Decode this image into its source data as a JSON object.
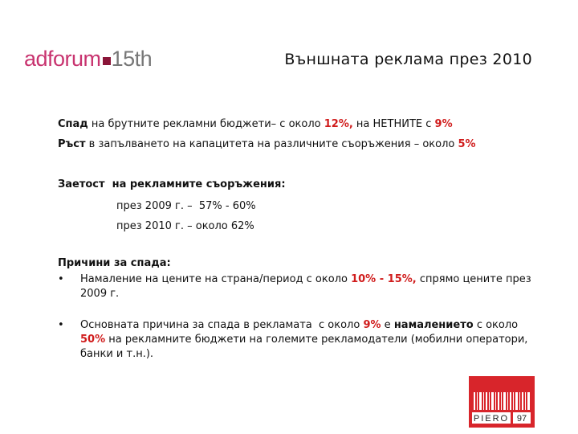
{
  "logo": {
    "brand": "adforum",
    "edition": "15th"
  },
  "title": "Външната реклама през 2010",
  "line1": [
    "Спад",
    " на брутните рекламни бюджети– с около ",
    "12%,",
    " на НЕТНИТЕ с ",
    "9%"
  ],
  "line2": [
    "Ръст",
    " в запълването на капацитета на различните съоръжения – около ",
    "5%"
  ],
  "occupancy": {
    "heading": "Заетост  на рекламните съоръжения:",
    "items": [
      "през 2009 г. –  57% - 60%",
      "през 2010 г. – около 62%"
    ]
  },
  "reasons": {
    "heading": "Причини за спада:",
    "bullet1": [
      "Намаление на цените на страна/период с около ",
      "10% - 15%,",
      " спрямо цените през 2009 г."
    ],
    "bullet2": [
      "Основната причина за спада в рекламата  с около ",
      "9%",
      " е ",
      "намалението",
      " с около ",
      "50%",
      " на рекламните бюджети на големите рекламодатели (мобилни оператори, банки и т.н.)."
    ]
  },
  "footer_logo": {
    "name": "PIERO",
    "number": "97"
  }
}
